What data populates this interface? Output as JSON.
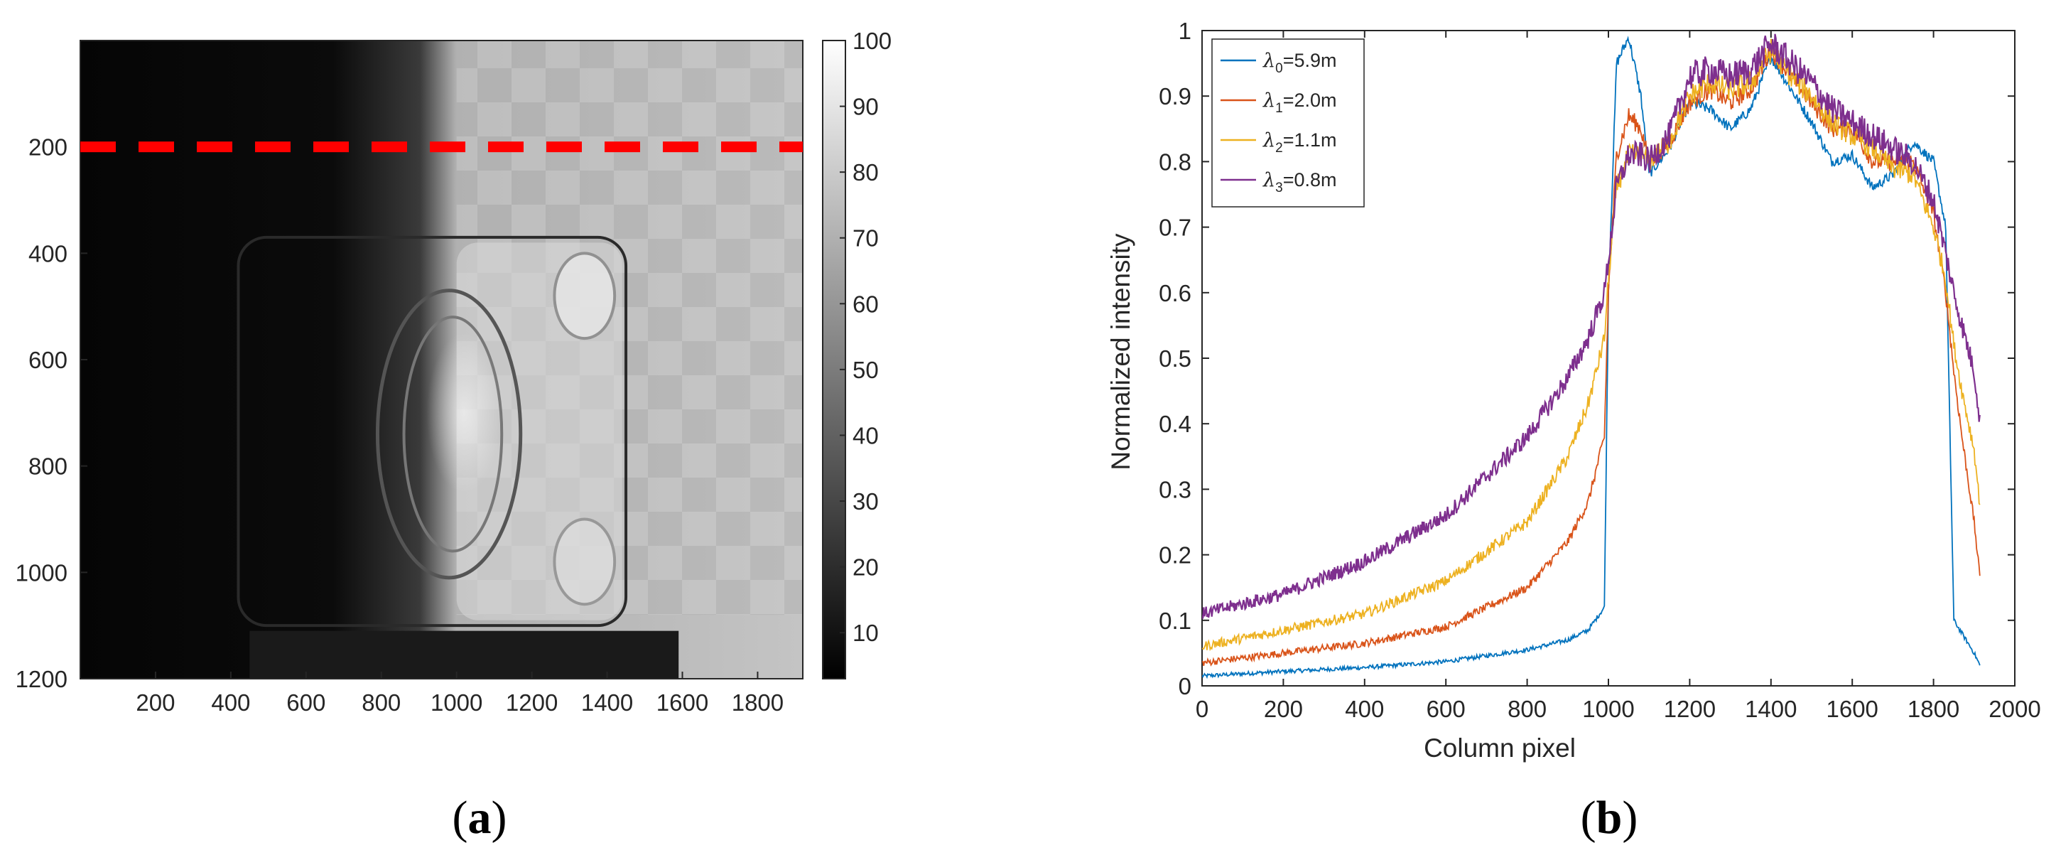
{
  "chart_data": [
    {
      "type": "heatmap",
      "panel_label": {
        "open": "(",
        "letter": "a",
        "close": ")"
      },
      "x_ticks": [
        200,
        400,
        600,
        800,
        1000,
        1200,
        1400,
        1600,
        1800
      ],
      "y_ticks": [
        200,
        400,
        600,
        800,
        1000,
        1200
      ],
      "xlim": [
        0,
        1920
      ],
      "ylim": [
        0,
        1200
      ],
      "colorbar": {
        "ticks": [
          10,
          20,
          30,
          40,
          50,
          60,
          70,
          80,
          90,
          100
        ],
        "range": [
          3,
          100
        ]
      },
      "scan_line": {
        "row": 200,
        "color": "#ff0000"
      },
      "image_regions": {
        "shadow_boundary_col": 1000,
        "bright_region_level": 80,
        "dark_region_level": 5,
        "checkerboard_start_col": 1000
      }
    },
    {
      "type": "line",
      "panel_label": {
        "open": "(",
        "letter": "b",
        "close": ")"
      },
      "xlabel": "Column pixel",
      "ylabel": "Normalized intensity",
      "xlim": [
        0,
        2000
      ],
      "ylim": [
        0,
        1
      ],
      "x_ticks": [
        0,
        200,
        400,
        600,
        800,
        1000,
        1200,
        1400,
        1600,
        1800,
        2000
      ],
      "y_ticks": [
        "0",
        "0.1",
        "0.2",
        "0.3",
        "0.4",
        "0.5",
        "0.6",
        "0.7",
        "0.8",
        "0.9",
        "1"
      ],
      "legend_position": "top-left",
      "series": [
        {
          "name": "λ0=5.9m",
          "symbol": "λ",
          "sub": "0",
          "rest": "=5.9m",
          "color": "#0072bd",
          "x": [
            0,
            200,
            400,
            600,
            800,
            900,
            950,
            990,
            1000,
            1020,
            1050,
            1080,
            1100,
            1150,
            1200,
            1250,
            1300,
            1350,
            1400,
            1450,
            1500,
            1550,
            1600,
            1650,
            1700,
            1750,
            1800,
            1830,
            1850,
            1870,
            1900,
            1915
          ],
          "y": [
            0.015,
            0.022,
            0.028,
            0.037,
            0.055,
            0.07,
            0.085,
            0.12,
            0.6,
            0.95,
            0.99,
            0.9,
            0.78,
            0.82,
            0.89,
            0.88,
            0.85,
            0.88,
            0.96,
            0.91,
            0.86,
            0.8,
            0.81,
            0.76,
            0.78,
            0.83,
            0.8,
            0.7,
            0.1,
            0.08,
            0.05,
            0.03
          ]
        },
        {
          "name": "λ1=2.0m",
          "symbol": "λ",
          "sub": "1",
          "rest": "=2.0m",
          "color": "#d95319",
          "x": [
            0,
            200,
            400,
            600,
            800,
            900,
            950,
            990,
            1000,
            1020,
            1050,
            1080,
            1100,
            1150,
            1200,
            1250,
            1300,
            1350,
            1400,
            1450,
            1500,
            1550,
            1600,
            1650,
            1700,
            1750,
            1800,
            1830,
            1850,
            1870,
            1900,
            1915
          ],
          "y": [
            0.035,
            0.05,
            0.065,
            0.09,
            0.15,
            0.22,
            0.28,
            0.38,
            0.6,
            0.81,
            0.87,
            0.85,
            0.8,
            0.83,
            0.89,
            0.91,
            0.89,
            0.91,
            0.97,
            0.93,
            0.89,
            0.85,
            0.85,
            0.8,
            0.8,
            0.8,
            0.72,
            0.6,
            0.48,
            0.38,
            0.25,
            0.16
          ]
        },
        {
          "name": "λ2=1.1m",
          "symbol": "λ",
          "sub": "2",
          "rest": "=1.1m",
          "color": "#edb120",
          "x": [
            0,
            200,
            400,
            600,
            800,
            900,
            950,
            990,
            1000,
            1020,
            1050,
            1080,
            1100,
            1150,
            1200,
            1250,
            1300,
            1350,
            1400,
            1450,
            1500,
            1550,
            1600,
            1650,
            1700,
            1750,
            1800,
            1830,
            1850,
            1870,
            1900,
            1915
          ],
          "y": [
            0.06,
            0.085,
            0.11,
            0.16,
            0.25,
            0.35,
            0.43,
            0.53,
            0.62,
            0.76,
            0.81,
            0.81,
            0.8,
            0.83,
            0.9,
            0.92,
            0.91,
            0.92,
            0.97,
            0.93,
            0.9,
            0.86,
            0.84,
            0.82,
            0.79,
            0.78,
            0.7,
            0.62,
            0.52,
            0.45,
            0.36,
            0.27
          ]
        },
        {
          "name": "λ3=0.8m",
          "symbol": "λ",
          "sub": "3",
          "rest": "=0.8m",
          "color": "#7e2f8e",
          "x": [
            0,
            200,
            400,
            600,
            800,
            900,
            950,
            990,
            1000,
            1020,
            1050,
            1080,
            1100,
            1150,
            1200,
            1250,
            1300,
            1350,
            1400,
            1450,
            1500,
            1550,
            1600,
            1650,
            1700,
            1750,
            1800,
            1830,
            1850,
            1870,
            1900,
            1915
          ],
          "y": [
            0.11,
            0.14,
            0.19,
            0.26,
            0.38,
            0.47,
            0.53,
            0.6,
            0.65,
            0.76,
            0.81,
            0.81,
            0.8,
            0.84,
            0.93,
            0.94,
            0.93,
            0.94,
            0.98,
            0.95,
            0.92,
            0.88,
            0.86,
            0.84,
            0.82,
            0.8,
            0.74,
            0.66,
            0.6,
            0.55,
            0.48,
            0.4
          ]
        }
      ]
    }
  ]
}
